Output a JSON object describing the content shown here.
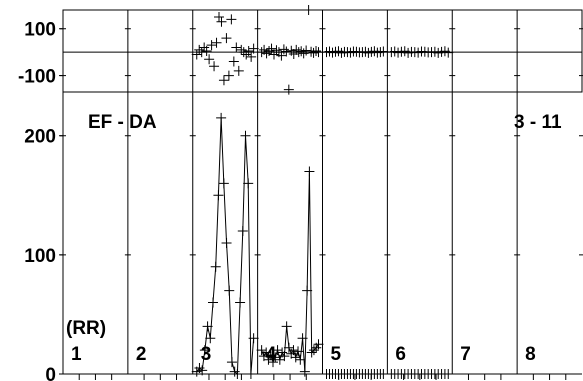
{
  "chart_data": [
    {
      "type": "scatter",
      "title": "",
      "xlabel": "",
      "ylabel": "",
      "ylim": [
        -170,
        180
      ],
      "yticks": [
        100,
        -100
      ],
      "ytick_labels": [
        "100",
        "-100"
      ],
      "reference_line": 0,
      "groups": [
        {
          "group": 3,
          "values": [
            -10,
            10,
            0,
            20,
            5,
            -30,
            30,
            -60,
            40,
            150,
            130,
            -120,
            60,
            -100,
            140,
            -40,
            20,
            -80,
            10,
            0,
            -10,
            5,
            -20,
            15
          ]
        },
        {
          "group": 4,
          "values": [
            0,
            10,
            -5,
            5,
            15,
            -10,
            8,
            0,
            -15,
            12,
            3,
            -160,
            6,
            -8,
            10,
            0,
            4,
            -5,
            7,
            180,
            2,
            -3,
            5,
            0
          ]
        },
        {
          "group": 5,
          "values": [
            0,
            3,
            -2,
            2,
            4,
            -3,
            1,
            0,
            -2,
            3,
            2,
            -1,
            0,
            2,
            -3,
            1,
            4,
            -2,
            0,
            3
          ]
        },
        {
          "group": 6,
          "values": [
            0,
            3,
            -2,
            2,
            4,
            -3,
            1,
            0,
            -2,
            3,
            2,
            -1,
            0,
            2,
            -3,
            1,
            4,
            -2
          ]
        }
      ]
    },
    {
      "type": "line",
      "title": "EF - DA",
      "annotation": "3 - 11",
      "xlabel": "",
      "ylabel": "(RR)",
      "ylim": [
        0,
        230
      ],
      "yticks": [
        0,
        100,
        200
      ],
      "ytick_labels": [
        "0",
        "100",
        "200"
      ],
      "categories": [
        "1",
        "2",
        "3",
        "4",
        "5",
        "6",
        "7",
        "8"
      ],
      "groups": [
        {
          "group": 3,
          "values": [
            2,
            5,
            3,
            20,
            40,
            30,
            60,
            90,
            150,
            215,
            160,
            110,
            70,
            10,
            2,
            0,
            60,
            120,
            200,
            160,
            0,
            30
          ]
        },
        {
          "group": 4,
          "values": [
            20,
            15,
            18,
            12,
            16,
            10,
            14,
            20,
            12,
            18,
            15,
            40,
            22,
            17,
            20,
            14,
            19,
            12,
            30,
            2,
            70,
            170,
            18,
            20,
            22,
            25
          ]
        },
        {
          "group": 5,
          "values": [
            0,
            0,
            0,
            0,
            0,
            0,
            0,
            0,
            0,
            0,
            0,
            0,
            0,
            0,
            0,
            0,
            0,
            0,
            0,
            0
          ]
        },
        {
          "group": 6,
          "values": [
            0,
            0,
            0,
            0,
            0,
            0,
            0,
            0,
            0,
            0,
            0,
            0,
            0,
            0,
            0,
            0,
            0,
            0
          ]
        }
      ]
    }
  ]
}
